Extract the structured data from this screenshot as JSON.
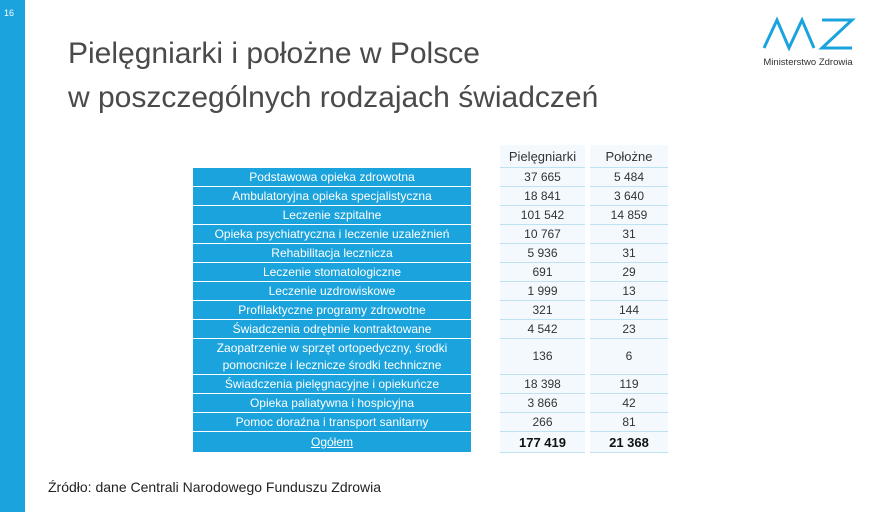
{
  "page_number": "16",
  "title": [
    "Pielęgniarki i położne w Polsce",
    "w poszczególnych rodzajach świadczeń"
  ],
  "logo": {
    "text": "Ministerstwo Zdrowia"
  },
  "table": {
    "columns": [
      "Pielęgniarki",
      "Położne"
    ],
    "rows": [
      {
        "label": "Podstawowa opieka zdrowotna",
        "values": [
          "37 665",
          "5 484"
        ]
      },
      {
        "label": "Ambulatoryjna opieka specjalistyczna",
        "values": [
          "18 841",
          "3 640"
        ]
      },
      {
        "label": "Leczenie szpitalne",
        "values": [
          "101 542",
          "14 859"
        ]
      },
      {
        "label": "Opieka psychiatryczna i leczenie uzależnień",
        "values": [
          "10 767",
          "31"
        ]
      },
      {
        "label": "Rehabilitacja lecznicza",
        "values": [
          "5 936",
          "31"
        ]
      },
      {
        "label": "Leczenie stomatologiczne",
        "values": [
          "691",
          "29"
        ]
      },
      {
        "label": "Leczenie uzdrowiskowe",
        "values": [
          "1 999",
          "13"
        ]
      },
      {
        "label": "Profilaktyczne programy zdrowotne",
        "values": [
          "321",
          "144"
        ]
      },
      {
        "label": "Świadczenia odrębnie kontraktowane",
        "values": [
          "4 542",
          "23"
        ]
      },
      {
        "label": "Zaopatrzenie w sprzęt ortopedyczny, środki pomocnicze i lecznicze środki techniczne",
        "values": [
          "136",
          "6"
        ]
      },
      {
        "label": "Świadczenia pielęgnacyjne i opiekuńcze",
        "values": [
          "18 398",
          "119"
        ]
      },
      {
        "label": "Opieka paliatywna i hospicyjna",
        "values": [
          "3 866",
          "42"
        ]
      },
      {
        "label": "Pomoc doraźna i transport sanitarny",
        "values": [
          "266",
          "81"
        ]
      }
    ],
    "total": {
      "label": "Ogółem",
      "values": [
        "177 419",
        "21 368"
      ]
    }
  },
  "source": "Źródło: dane Centrali Narodowego Funduszu Zdrowia"
}
